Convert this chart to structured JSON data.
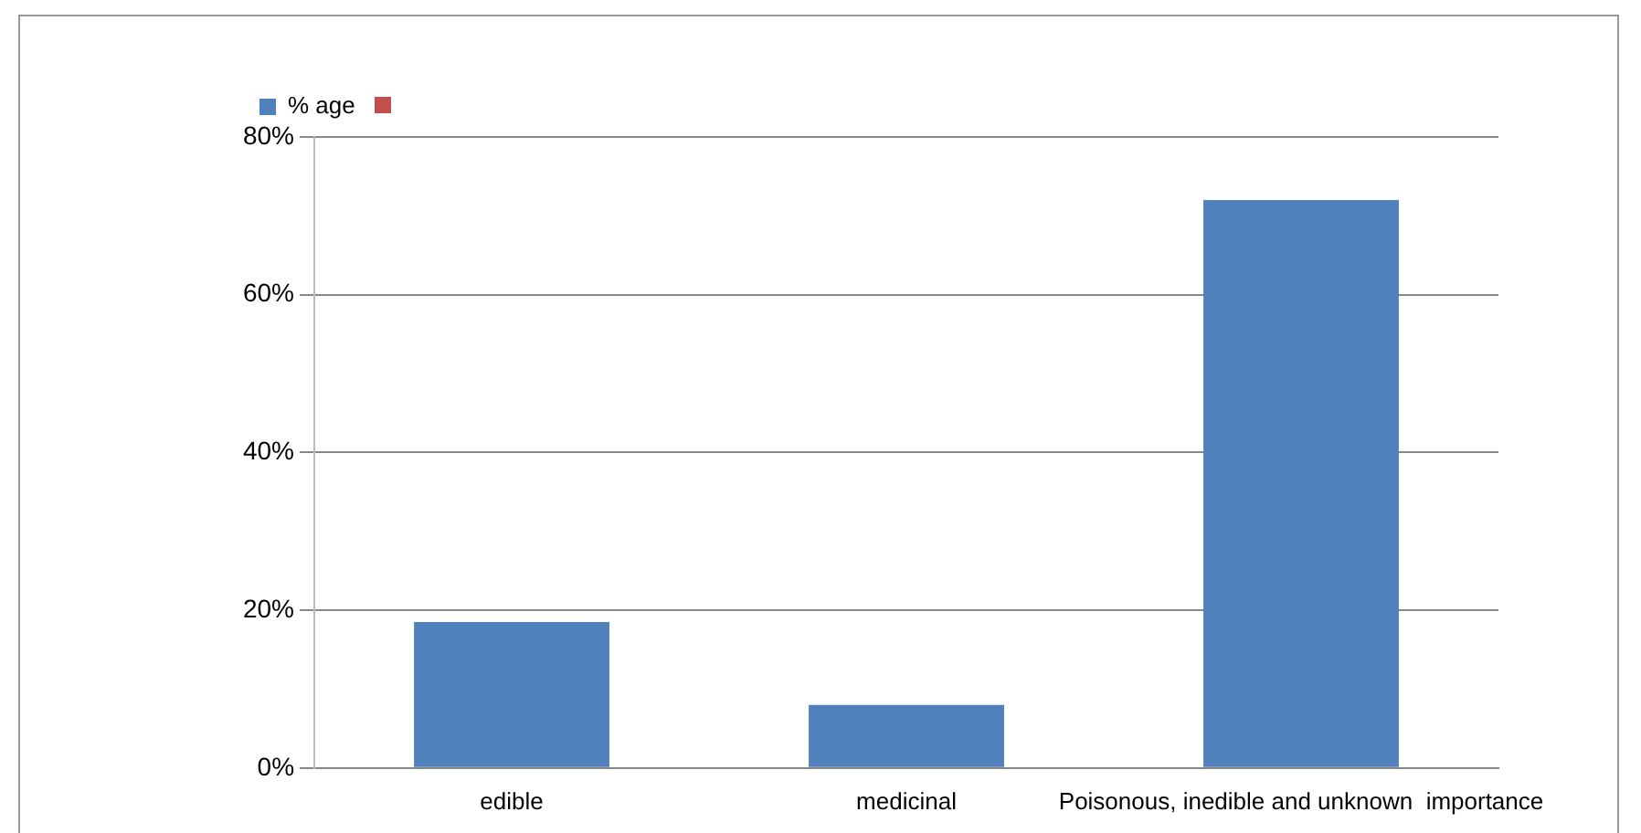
{
  "chart_data": {
    "type": "bar",
    "categories": [
      "edible",
      "medicinal",
      "Poisonous, inedible and unknown  importance"
    ],
    "series": [
      {
        "name": "% age",
        "color": "#4f81bd",
        "values": [
          18.5,
          8,
          72
        ]
      }
    ],
    "ylim": [
      0,
      80
    ],
    "yticks": [
      {
        "value": 0,
        "label": "0%"
      },
      {
        "value": 20,
        "label": "20%"
      },
      {
        "value": 40,
        "label": "40%"
      },
      {
        "value": 60,
        "label": "60%"
      },
      {
        "value": 80,
        "label": "80%"
      }
    ],
    "grid": "y",
    "legend": "top"
  }
}
